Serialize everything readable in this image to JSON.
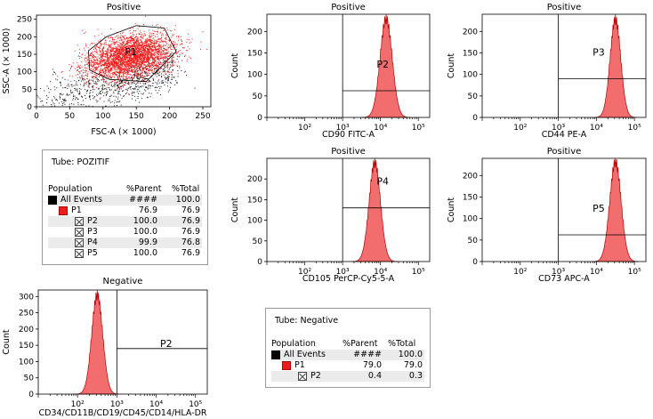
{
  "colors": {
    "fill": "#f26d6d",
    "edge": "#b40000",
    "dots_black": "#111111",
    "dots_red": "#ff1a1a",
    "gate": "#000000"
  },
  "chart_data": [
    {
      "id": "scatter",
      "type": "scatter",
      "title": "Positive",
      "xlabel": "FSC-A (× 1000)",
      "ylabel": "SSC-A (× 1000)",
      "xlim": [
        0,
        262
      ],
      "ylim": [
        0,
        262
      ],
      "xticks": [
        0,
        50,
        100,
        150,
        200,
        250
      ],
      "yticks": [
        0,
        50,
        100,
        150,
        200,
        250
      ],
      "population_label": "P1",
      "series": [
        {
          "name": "All Events",
          "color": "#111111",
          "center": [
            90,
            75
          ],
          "spread": [
            60,
            45
          ],
          "count": 900
        },
        {
          "name": "P1",
          "color": "#ff1a1a",
          "center": [
            140,
            145
          ],
          "spread": [
            32,
            30
          ],
          "count": 3200
        }
      ],
      "gate_polygon": [
        [
          78,
          160
        ],
        [
          105,
          200
        ],
        [
          150,
          232
        ],
        [
          192,
          225
        ],
        [
          210,
          158
        ],
        [
          165,
          72
        ],
        [
          110,
          78
        ],
        [
          80,
          105
        ]
      ]
    },
    {
      "id": "h_cd90",
      "type": "area",
      "title": "Positive",
      "xlabel": "CD90 FITC-A",
      "ylabel": "Count",
      "ylim": [
        0,
        240
      ],
      "yticks": [
        0,
        50,
        100,
        150,
        200
      ],
      "xlim_log": [
        1,
        5.3
      ],
      "xticks": [
        "10²",
        "10³",
        "10⁴",
        "10⁵"
      ],
      "gate": "P2",
      "gate_x": 3.0,
      "gate_y": 62,
      "peak": {
        "center": 4.15,
        "height": 230,
        "width": 0.16
      }
    },
    {
      "id": "h_cd44",
      "type": "area",
      "title": "Positive",
      "xlabel": "CD44 PE-A",
      "ylabel": "Count",
      "ylim": [
        0,
        240
      ],
      "yticks": [
        0,
        50,
        100,
        150,
        200
      ],
      "xlim_log": [
        1,
        5.3
      ],
      "xticks": [
        "10²",
        "10³",
        "10⁴",
        "10⁵"
      ],
      "gate": "P3",
      "gate_x": 3.0,
      "gate_y": 90,
      "peak": {
        "center": 4.5,
        "height": 228,
        "width": 0.14
      }
    },
    {
      "id": "h_cd105",
      "type": "area",
      "title": "Positive",
      "xlabel": "CD105 PerCP-Cy5-5-A",
      "ylabel": "Count",
      "ylim": [
        0,
        250
      ],
      "yticks": [
        0,
        50,
        100,
        150,
        200
      ],
      "xlim_log": [
        1,
        5.3
      ],
      "xticks": [
        "10²",
        "10³",
        "10⁴",
        "10⁵"
      ],
      "gate": "P4",
      "gate_x": 3.0,
      "gate_y": 130,
      "peak": {
        "center": 3.85,
        "height": 240,
        "width": 0.15
      }
    },
    {
      "id": "h_cd73",
      "type": "area",
      "title": "Positive",
      "xlabel": "CD73 APC-A",
      "ylabel": "Count",
      "ylim": [
        0,
        240
      ],
      "yticks": [
        0,
        50,
        100,
        150,
        200
      ],
      "xlim_log": [
        1,
        5.3
      ],
      "xticks": [
        "10²",
        "10³",
        "10⁴",
        "10⁵"
      ],
      "gate": "P5",
      "gate_x": 3.0,
      "gate_y": 62,
      "peak": {
        "center": 4.5,
        "height": 232,
        "width": 0.15
      }
    },
    {
      "id": "h_neg",
      "type": "area",
      "title": "Negative",
      "xlabel": "CD34/CD11B/CD19/CD45/CD14/HLA-DR",
      "ylabel": "Count",
      "ylim": [
        0,
        320
      ],
      "yticks": [
        0,
        50,
        100,
        150,
        200,
        250,
        300
      ],
      "xlim_log": [
        1.0,
        5.3
      ],
      "xticks": [
        "10²",
        "10³",
        "10⁴",
        "10⁵"
      ],
      "gate": "P2",
      "gate_x": 3.0,
      "gate_y": 140,
      "peak": {
        "center": 2.5,
        "height": 305,
        "width": 0.14
      }
    }
  ],
  "table_positive": {
    "tube": "Tube:   POZITIF",
    "headers": [
      "Population",
      "%Parent",
      "%Total"
    ],
    "rows": [
      {
        "name": "All Events",
        "parent": "####",
        "total": "100.0"
      },
      {
        "name": "P1",
        "parent": "76.9",
        "total": "76.9"
      },
      {
        "name": "P2",
        "parent": "100.0",
        "total": "76.9"
      },
      {
        "name": "P3",
        "parent": "100.0",
        "total": "76.9"
      },
      {
        "name": "P4",
        "parent": "99.9",
        "total": "76.8"
      },
      {
        "name": "P5",
        "parent": "100.0",
        "total": "76.9"
      }
    ]
  },
  "table_negative": {
    "tube": "Tube: Negative",
    "headers": [
      "Population",
      "%Parent",
      "%Total"
    ],
    "rows": [
      {
        "name": "All Events",
        "parent": "####",
        "total": "100.0"
      },
      {
        "name": "P1",
        "parent": "79.0",
        "total": "79.0"
      },
      {
        "name": "P2",
        "parent": "0.4",
        "total": "0.3"
      }
    ]
  }
}
